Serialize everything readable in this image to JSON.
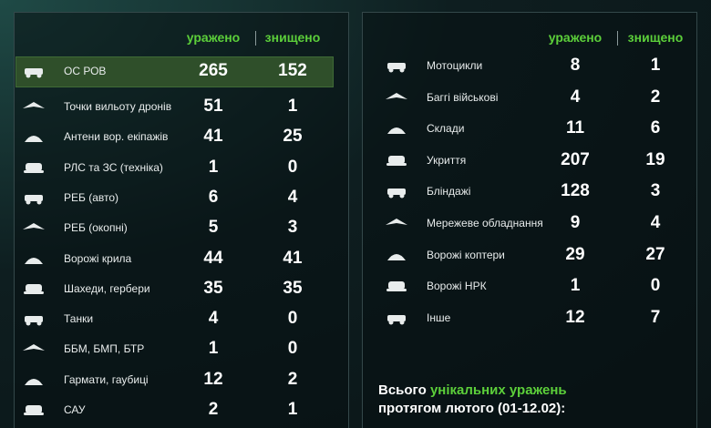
{
  "left": {
    "headers": [
      "уражено",
      "знищено"
    ],
    "rows": [
      [
        "ОС РОВ",
        265,
        152
      ],
      [
        "Точки вильоту дронів",
        51,
        1
      ],
      [
        "Антени вор. екіпажів",
        41,
        25
      ],
      [
        "РЛС та ЗС (техніка)",
        1,
        0
      ],
      [
        "РЕБ (авто)",
        6,
        4
      ],
      [
        "РЕБ (окопні)",
        5,
        3
      ],
      [
        "Ворожі крила",
        44,
        41
      ],
      [
        "Шахеди, гербери",
        35,
        35
      ],
      [
        "Танки",
        4,
        0
      ],
      [
        "ББМ, БМП, БТР",
        1,
        0
      ],
      [
        "Гармати, гаубиці",
        12,
        2
      ],
      [
        "САУ",
        2,
        1
      ]
    ]
  },
  "right": {
    "headers": [
      "уражено",
      "знищено"
    ],
    "rows": [
      [
        "Мотоцикли",
        8,
        1
      ],
      [
        "Баггі військові",
        4,
        2
      ],
      [
        "Склади",
        11,
        6
      ],
      [
        "Укриття",
        207,
        19
      ],
      [
        "Бліндажі",
        128,
        3
      ],
      [
        "Мережеве обладнання",
        9,
        4
      ],
      [
        "Ворожі коптери",
        29,
        27
      ],
      [
        "Ворожі НРК",
        1,
        0
      ],
      [
        "Інше",
        12,
        7
      ]
    ]
  },
  "footer": {
    "before": "Всього",
    "highlight": "унікальних уражень",
    "line2": "протягом лютого (01-12.02):"
  }
}
